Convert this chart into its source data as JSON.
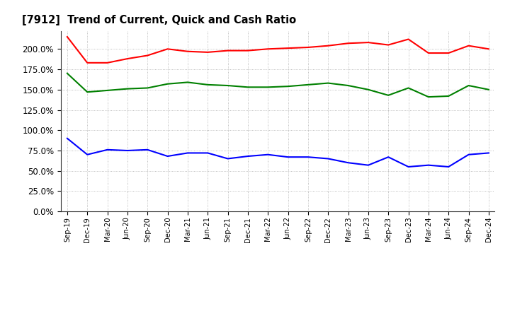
{
  "title": "[7912]  Trend of Current, Quick and Cash Ratio",
  "x_labels": [
    "Sep-19",
    "Dec-19",
    "Mar-20",
    "Jun-20",
    "Sep-20",
    "Dec-20",
    "Mar-21",
    "Jun-21",
    "Sep-21",
    "Dec-21",
    "Mar-22",
    "Jun-22",
    "Sep-22",
    "Dec-22",
    "Mar-23",
    "Jun-23",
    "Sep-23",
    "Dec-23",
    "Mar-24",
    "Jun-24",
    "Sep-24",
    "Dec-24"
  ],
  "current_ratio": [
    215,
    183,
    183,
    188,
    192,
    200,
    197,
    196,
    198,
    198,
    200,
    201,
    202,
    204,
    207,
    208,
    205,
    212,
    195,
    195,
    204,
    200
  ],
  "quick_ratio": [
    170,
    147,
    149,
    151,
    152,
    157,
    159,
    156,
    155,
    153,
    153,
    154,
    156,
    158,
    155,
    150,
    143,
    152,
    141,
    142,
    155,
    150
  ],
  "cash_ratio": [
    90,
    70,
    76,
    75,
    76,
    68,
    72,
    72,
    65,
    68,
    70,
    67,
    67,
    65,
    60,
    57,
    67,
    55,
    57,
    55,
    70,
    72
  ],
  "current_color": "#FF0000",
  "quick_color": "#008000",
  "cash_color": "#0000FF",
  "ylim": [
    0,
    222
  ],
  "yticks": [
    0,
    25,
    50,
    75,
    100,
    125,
    150,
    175,
    200
  ],
  "background_color": "#FFFFFF",
  "grid_color": "#AAAAAA"
}
